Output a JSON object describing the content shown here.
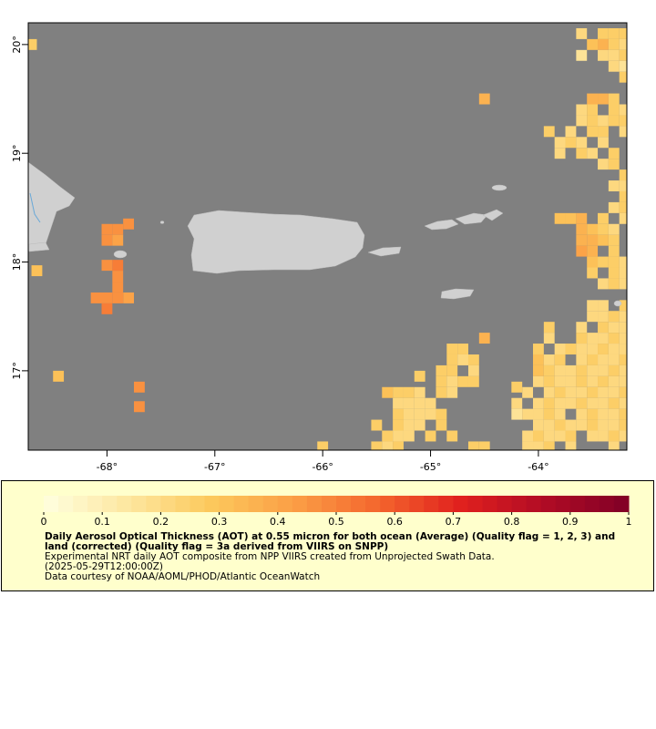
{
  "map": {
    "xlim": [
      -68.73,
      -63.18
    ],
    "ylim": [
      16.27,
      20.2
    ],
    "xticks": [
      {
        "value": -68,
        "label": "-68°"
      },
      {
        "value": -67,
        "label": "-67°"
      },
      {
        "value": -66,
        "label": "-66°"
      },
      {
        "value": -65,
        "label": "-65°"
      },
      {
        "value": -64,
        "label": "-64°"
      }
    ],
    "yticks": [
      {
        "value": 17,
        "label": "17°"
      },
      {
        "value": 18,
        "label": "18°"
      },
      {
        "value": 19,
        "label": "19°"
      },
      {
        "value": 20,
        "label": "20°"
      }
    ],
    "ocean_color": "#808080",
    "colormap": {
      "stops": [
        "#ffffe0",
        "#fde7a0",
        "#fcc95c",
        "#fb9e46",
        "#f4662d",
        "#e0201e",
        "#b00b25",
        "#800026"
      ],
      "steps": 40
    },
    "colorbar": {
      "lim": [
        0,
        1
      ],
      "ticks": [
        0,
        0.1,
        0.2,
        0.3,
        0.4,
        0.5,
        0.6,
        0.7,
        0.8,
        0.9,
        1
      ]
    },
    "cells": [
      [
        -68.7,
        20.0,
        0.25
      ],
      [
        -68.0,
        18.3,
        0.45
      ],
      [
        -67.9,
        18.3,
        0.45
      ],
      [
        -68.0,
        18.2,
        0.45
      ],
      [
        -67.9,
        18.2,
        0.4
      ],
      [
        -67.8,
        18.35,
        0.45
      ],
      [
        -68.0,
        17.97,
        0.45
      ],
      [
        -67.9,
        17.97,
        0.5
      ],
      [
        -67.9,
        17.87,
        0.45
      ],
      [
        -67.9,
        17.77,
        0.45
      ],
      [
        -67.8,
        17.67,
        0.4
      ],
      [
        -67.9,
        17.67,
        0.45
      ],
      [
        -68.1,
        17.67,
        0.45
      ],
      [
        -68.0,
        17.67,
        0.45
      ],
      [
        -68.0,
        17.57,
        0.5
      ],
      [
        -68.65,
        17.92,
        0.3
      ],
      [
        -68.45,
        16.95,
        0.3
      ],
      [
        -67.7,
        16.85,
        0.45
      ],
      [
        -67.7,
        16.67,
        0.45
      ],
      [
        -63.6,
        20.1,
        0.2
      ],
      [
        -63.4,
        20.1,
        0.25
      ],
      [
        -63.3,
        20.1,
        0.25
      ],
      [
        -63.2,
        20.1,
        0.25
      ],
      [
        -63.5,
        20.0,
        0.3
      ],
      [
        -63.4,
        20.0,
        0.35
      ],
      [
        -63.3,
        20.0,
        0.25
      ],
      [
        -63.2,
        20.0,
        0.2
      ],
      [
        -63.6,
        19.9,
        0.15
      ],
      [
        -63.4,
        19.9,
        0.2
      ],
      [
        -63.3,
        19.9,
        0.2
      ],
      [
        -63.2,
        19.9,
        0.25
      ],
      [
        -63.3,
        19.8,
        0.2
      ],
      [
        -63.2,
        19.8,
        0.15
      ],
      [
        -63.2,
        19.7,
        0.25
      ],
      [
        -63.5,
        19.5,
        0.35
      ],
      [
        -63.4,
        19.5,
        0.35
      ],
      [
        -63.3,
        19.5,
        0.25
      ],
      [
        -63.6,
        19.4,
        0.2
      ],
      [
        -63.5,
        19.4,
        0.25
      ],
      [
        -63.3,
        19.4,
        0.25
      ],
      [
        -63.2,
        19.4,
        0.2
      ],
      [
        -63.6,
        19.3,
        0.2
      ],
      [
        -63.5,
        19.3,
        0.25
      ],
      [
        -63.4,
        19.3,
        0.2
      ],
      [
        -63.3,
        19.3,
        0.25
      ],
      [
        -63.2,
        19.3,
        0.25
      ],
      [
        -63.9,
        19.2,
        0.25
      ],
      [
        -63.7,
        19.2,
        0.2
      ],
      [
        -63.5,
        19.2,
        0.25
      ],
      [
        -63.4,
        19.2,
        0.25
      ],
      [
        -63.2,
        19.2,
        0.2
      ],
      [
        -63.8,
        19.1,
        0.2
      ],
      [
        -63.7,
        19.1,
        0.25
      ],
      [
        -63.6,
        19.1,
        0.2
      ],
      [
        -63.4,
        19.1,
        0.2
      ],
      [
        -63.8,
        19.0,
        0.2
      ],
      [
        -63.6,
        19.0,
        0.25
      ],
      [
        -63.5,
        19.0,
        0.2
      ],
      [
        -63.3,
        19.0,
        0.25
      ],
      [
        -63.4,
        18.9,
        0.2
      ],
      [
        -63.3,
        18.9,
        0.25
      ],
      [
        -63.2,
        18.8,
        0.25
      ],
      [
        -63.3,
        18.7,
        0.2
      ],
      [
        -63.2,
        18.7,
        0.2
      ],
      [
        -63.2,
        18.6,
        0.25
      ],
      [
        -63.3,
        18.5,
        0.2
      ],
      [
        -63.2,
        18.5,
        0.25
      ],
      [
        -63.8,
        18.4,
        0.3
      ],
      [
        -63.7,
        18.4,
        0.3
      ],
      [
        -63.6,
        18.4,
        0.35
      ],
      [
        -63.4,
        18.4,
        0.25
      ],
      [
        -63.2,
        18.4,
        0.2
      ],
      [
        -63.6,
        18.3,
        0.35
      ],
      [
        -63.5,
        18.3,
        0.3
      ],
      [
        -63.4,
        18.3,
        0.25
      ],
      [
        -63.3,
        18.3,
        0.2
      ],
      [
        -63.6,
        18.2,
        0.35
      ],
      [
        -63.5,
        18.2,
        0.35
      ],
      [
        -63.4,
        18.2,
        0.3
      ],
      [
        -63.3,
        18.2,
        0.25
      ],
      [
        -63.6,
        18.1,
        0.4
      ],
      [
        -63.5,
        18.1,
        0.35
      ],
      [
        -63.3,
        18.1,
        0.25
      ],
      [
        -63.5,
        18.0,
        0.3
      ],
      [
        -63.4,
        18.0,
        0.25
      ],
      [
        -63.3,
        18.0,
        0.25
      ],
      [
        -63.2,
        18.0,
        0.2
      ],
      [
        -63.5,
        17.9,
        0.25
      ],
      [
        -63.3,
        17.9,
        0.25
      ],
      [
        -63.2,
        17.9,
        0.2
      ],
      [
        -63.4,
        17.8,
        0.2
      ],
      [
        -63.3,
        17.8,
        0.25
      ],
      [
        -63.2,
        17.8,
        0.2
      ],
      [
        -63.5,
        17.6,
        0.2
      ],
      [
        -63.4,
        17.6,
        0.2
      ],
      [
        -63.2,
        17.6,
        0.25
      ],
      [
        -63.5,
        17.5,
        0.2
      ],
      [
        -63.4,
        17.5,
        0.2
      ],
      [
        -63.3,
        17.5,
        0.25
      ],
      [
        -63.2,
        17.5,
        0.2
      ],
      [
        -63.9,
        17.4,
        0.25
      ],
      [
        -63.6,
        17.4,
        0.2
      ],
      [
        -63.4,
        17.4,
        0.25
      ],
      [
        -63.3,
        17.4,
        0.2
      ],
      [
        -63.2,
        17.4,
        0.2
      ],
      [
        -63.9,
        17.3,
        0.2
      ],
      [
        -63.6,
        17.3,
        0.25
      ],
      [
        -63.5,
        17.3,
        0.2
      ],
      [
        -63.4,
        17.3,
        0.2
      ],
      [
        -63.3,
        17.3,
        0.25
      ],
      [
        -63.2,
        17.3,
        0.2
      ],
      [
        -64.0,
        17.2,
        0.25
      ],
      [
        -63.8,
        17.2,
        0.2
      ],
      [
        -63.7,
        17.2,
        0.25
      ],
      [
        -63.6,
        17.2,
        0.2
      ],
      [
        -63.5,
        17.2,
        0.2
      ],
      [
        -63.4,
        17.2,
        0.25
      ],
      [
        -63.3,
        17.2,
        0.2
      ],
      [
        -63.2,
        17.2,
        0.2
      ],
      [
        -64.0,
        17.1,
        0.3
      ],
      [
        -63.9,
        17.1,
        0.2
      ],
      [
        -63.8,
        17.1,
        0.25
      ],
      [
        -63.6,
        17.1,
        0.2
      ],
      [
        -63.5,
        17.1,
        0.25
      ],
      [
        -63.4,
        17.1,
        0.2
      ],
      [
        -63.3,
        17.1,
        0.2
      ],
      [
        -63.2,
        17.1,
        0.25
      ],
      [
        -64.0,
        17.0,
        0.3
      ],
      [
        -63.9,
        17.0,
        0.25
      ],
      [
        -63.8,
        17.0,
        0.2
      ],
      [
        -63.7,
        17.0,
        0.2
      ],
      [
        -63.6,
        17.0,
        0.25
      ],
      [
        -63.5,
        17.0,
        0.2
      ],
      [
        -63.4,
        17.0,
        0.2
      ],
      [
        -63.3,
        17.0,
        0.25
      ],
      [
        -63.2,
        17.0,
        0.2
      ],
      [
        -64.0,
        16.9,
        0.2
      ],
      [
        -63.9,
        16.9,
        0.25
      ],
      [
        -63.8,
        16.9,
        0.2
      ],
      [
        -63.7,
        16.9,
        0.2
      ],
      [
        -63.6,
        16.9,
        0.25
      ],
      [
        -63.5,
        16.9,
        0.2
      ],
      [
        -63.4,
        16.9,
        0.25
      ],
      [
        -63.3,
        16.9,
        0.2
      ],
      [
        -63.2,
        16.9,
        0.2
      ],
      [
        -64.1,
        16.8,
        0.2
      ],
      [
        -63.9,
        16.8,
        0.2
      ],
      [
        -63.8,
        16.8,
        0.25
      ],
      [
        -63.7,
        16.8,
        0.2
      ],
      [
        -63.6,
        16.8,
        0.2
      ],
      [
        -63.5,
        16.8,
        0.25
      ],
      [
        -63.4,
        16.8,
        0.2
      ],
      [
        -63.3,
        16.8,
        0.2
      ],
      [
        -63.2,
        16.8,
        0.25
      ],
      [
        -64.2,
        16.7,
        0.2
      ],
      [
        -64.0,
        16.7,
        0.2
      ],
      [
        -63.9,
        16.7,
        0.25
      ],
      [
        -63.8,
        16.7,
        0.2
      ],
      [
        -63.7,
        16.7,
        0.2
      ],
      [
        -63.6,
        16.7,
        0.25
      ],
      [
        -63.5,
        16.7,
        0.2
      ],
      [
        -63.4,
        16.7,
        0.2
      ],
      [
        -63.3,
        16.7,
        0.25
      ],
      [
        -63.2,
        16.7,
        0.2
      ],
      [
        -64.2,
        16.6,
        0.15
      ],
      [
        -64.1,
        16.6,
        0.2
      ],
      [
        -64.0,
        16.6,
        0.2
      ],
      [
        -63.9,
        16.6,
        0.25
      ],
      [
        -63.8,
        16.6,
        0.2
      ],
      [
        -63.6,
        16.6,
        0.2
      ],
      [
        -63.5,
        16.6,
        0.25
      ],
      [
        -63.4,
        16.6,
        0.2
      ],
      [
        -63.3,
        16.6,
        0.2
      ],
      [
        -63.2,
        16.6,
        0.25
      ],
      [
        -64.0,
        16.5,
        0.2
      ],
      [
        -63.9,
        16.5,
        0.2
      ],
      [
        -63.8,
        16.5,
        0.25
      ],
      [
        -63.7,
        16.5,
        0.2
      ],
      [
        -63.6,
        16.5,
        0.2
      ],
      [
        -63.5,
        16.5,
        0.25
      ],
      [
        -63.4,
        16.5,
        0.2
      ],
      [
        -63.3,
        16.5,
        0.2
      ],
      [
        -63.2,
        16.5,
        0.25
      ],
      [
        -64.1,
        16.4,
        0.2
      ],
      [
        -64.0,
        16.4,
        0.25
      ],
      [
        -63.9,
        16.4,
        0.2
      ],
      [
        -63.8,
        16.4,
        0.2
      ],
      [
        -63.7,
        16.4,
        0.25
      ],
      [
        -63.5,
        16.4,
        0.2
      ],
      [
        -63.4,
        16.4,
        0.2
      ],
      [
        -63.3,
        16.4,
        0.25
      ],
      [
        -63.2,
        16.4,
        0.2
      ],
      [
        -64.1,
        16.3,
        0.2
      ],
      [
        -64.0,
        16.3,
        0.2
      ],
      [
        -63.9,
        16.3,
        0.25
      ],
      [
        -63.7,
        16.3,
        0.2
      ],
      [
        -63.3,
        16.3,
        0.2
      ],
      [
        -64.8,
        17.2,
        0.25
      ],
      [
        -64.7,
        17.2,
        0.25
      ],
      [
        -64.8,
        17.1,
        0.25
      ],
      [
        -64.7,
        17.1,
        0.2
      ],
      [
        -64.6,
        17.1,
        0.25
      ],
      [
        -64.9,
        17.0,
        0.25
      ],
      [
        -64.8,
        17.0,
        0.25
      ],
      [
        -64.6,
        17.0,
        0.2
      ],
      [
        -65.1,
        16.95,
        0.25
      ],
      [
        -64.9,
        16.9,
        0.25
      ],
      [
        -64.8,
        16.9,
        0.2
      ],
      [
        -64.7,
        16.9,
        0.25
      ],
      [
        -64.6,
        16.9,
        0.25
      ],
      [
        -65.4,
        16.8,
        0.3
      ],
      [
        -65.3,
        16.8,
        0.25
      ],
      [
        -65.2,
        16.8,
        0.25
      ],
      [
        -65.1,
        16.8,
        0.2
      ],
      [
        -64.9,
        16.8,
        0.25
      ],
      [
        -64.8,
        16.8,
        0.2
      ],
      [
        -65.3,
        16.7,
        0.2
      ],
      [
        -65.2,
        16.7,
        0.2
      ],
      [
        -65.1,
        16.7,
        0.2
      ],
      [
        -65.0,
        16.7,
        0.2
      ],
      [
        -65.3,
        16.6,
        0.25
      ],
      [
        -65.2,
        16.6,
        0.2
      ],
      [
        -65.1,
        16.6,
        0.2
      ],
      [
        -65.0,
        16.6,
        0.2
      ],
      [
        -64.9,
        16.6,
        0.25
      ],
      [
        -65.5,
        16.5,
        0.25
      ],
      [
        -65.3,
        16.5,
        0.25
      ],
      [
        -65.2,
        16.5,
        0.2
      ],
      [
        -65.1,
        16.5,
        0.2
      ],
      [
        -64.9,
        16.5,
        0.25
      ],
      [
        -65.4,
        16.4,
        0.25
      ],
      [
        -65.3,
        16.4,
        0.2
      ],
      [
        -65.2,
        16.4,
        0.2
      ],
      [
        -65.0,
        16.4,
        0.25
      ],
      [
        -64.8,
        16.4,
        0.25
      ],
      [
        -65.5,
        16.3,
        0.25
      ],
      [
        -65.4,
        16.3,
        0.2
      ],
      [
        -65.3,
        16.3,
        0.25
      ],
      [
        -64.6,
        16.3,
        0.25
      ],
      [
        -64.5,
        16.3,
        0.25
      ],
      [
        -66.0,
        16.3,
        0.25
      ],
      [
        -64.5,
        17.3,
        0.35
      ],
      [
        -64.5,
        19.5,
        0.35
      ],
      [
        -64.2,
        16.85,
        0.25
      ]
    ]
  },
  "caption": {
    "title": "Daily Aerosol Optical Thickness (AOT) at 0.55 micron for both ocean (Average) (Quality flag = 1, 2, 3) and land (corrected) (Quality flag = 3a derived from VIIRS on SNPP)",
    "lines": [
      "Experimental NRT daily AOT composite from NPP VIIRS created from Unprojected Swath Data.",
      "(2025-05-29T12:00:00Z)",
      "Data courtesy of NOAA/AOML/PHOD/Atlantic OceanWatch"
    ]
  }
}
